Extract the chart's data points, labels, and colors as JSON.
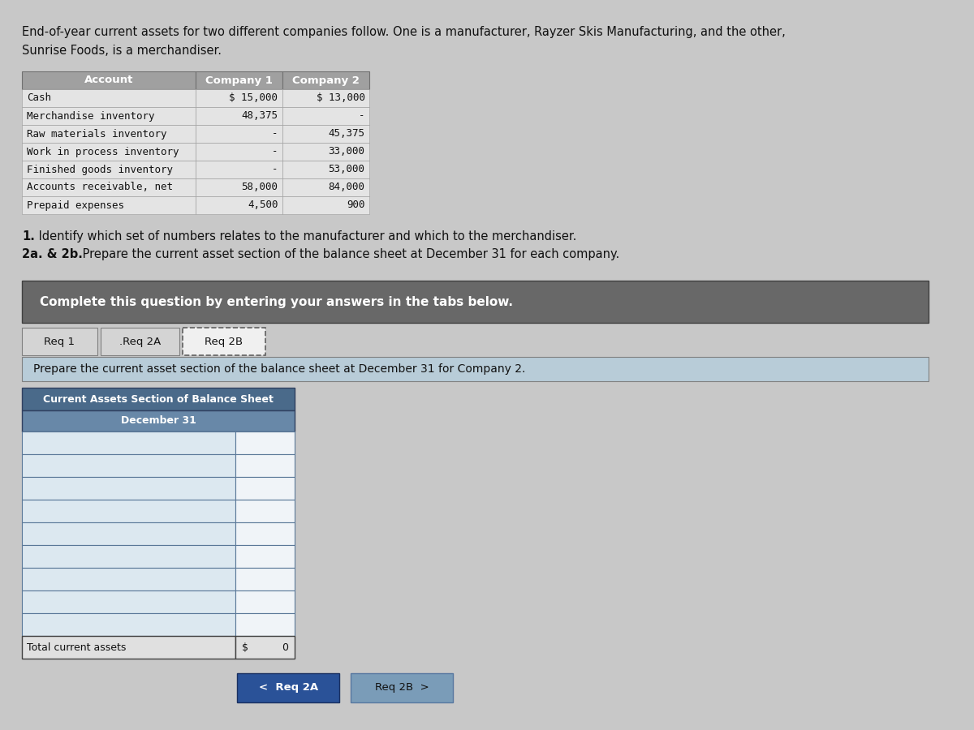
{
  "page_bg": "#c8c8c8",
  "intro_text_line1": "End-of-year current assets for two different companies follow. One is a manufacturer, Rayzer Skis Manufacturing, and the other,",
  "intro_text_line2": "Sunrise Foods, is a merchandiser.",
  "table_header": [
    "Account",
    "Company 1",
    "Company 2"
  ],
  "table_rows": [
    [
      "Cash",
      "$ 15,000",
      "$ 13,000"
    ],
    [
      "Merchandise inventory",
      "48,375",
      "-"
    ],
    [
      "Raw materials inventory",
      "-",
      "45,375"
    ],
    [
      "Work in process inventory",
      "-",
      "33,000"
    ],
    [
      "Finished goods inventory",
      "-",
      "53,000"
    ],
    [
      "Accounts receivable, net",
      "58,000",
      "84,000"
    ],
    [
      "Prepaid expenses",
      "4,500",
      "900"
    ]
  ],
  "instruction_line1": "1. Identify which set of numbers relates to the manufacturer and which to the merchandiser.",
  "instruction_line2": "2a. & 2b. Prepare the current asset section of the balance sheet at December 31 for each company.",
  "instruction_bold_prefix1": "1.",
  "instruction_bold_prefix2": "2a. & 2b.",
  "complete_text": "Complete this question by entering your answers in the tabs below.",
  "tab_labels": [
    "Req 1",
    ".Req 2A",
    "Req 2B"
  ],
  "prepare_text": "Prepare the current asset section of the balance sheet at December 31 for Company 2.",
  "form_title": "Current Assets Section of Balance Sheet",
  "form_subtitle": "December 31",
  "form_rows": 9,
  "total_label": "Total current assets",
  "total_dollar": "$",
  "total_value": "0",
  "nav_btn1_text": "<  Req 2A",
  "nav_btn2_text": "Req 2B  >",
  "nav_btn1_color": "#2a5298",
  "nav_btn2_color": "#7a9cb8",
  "table_header_bg": "#a0a0a0",
  "table_row_bg": "#e8e8e8",
  "complete_box_bg": "#686868",
  "prepare_bar_bg": "#b8ccd8",
  "form_header_bg": "#4a6a8a",
  "form_subheader_bg": "#6888a8",
  "form_row_bg_light": "#dce8f0",
  "form_row_bg_white": "#f0f4f8",
  "form_border": "#5a7898",
  "total_row_bg": "#e0e0e0"
}
